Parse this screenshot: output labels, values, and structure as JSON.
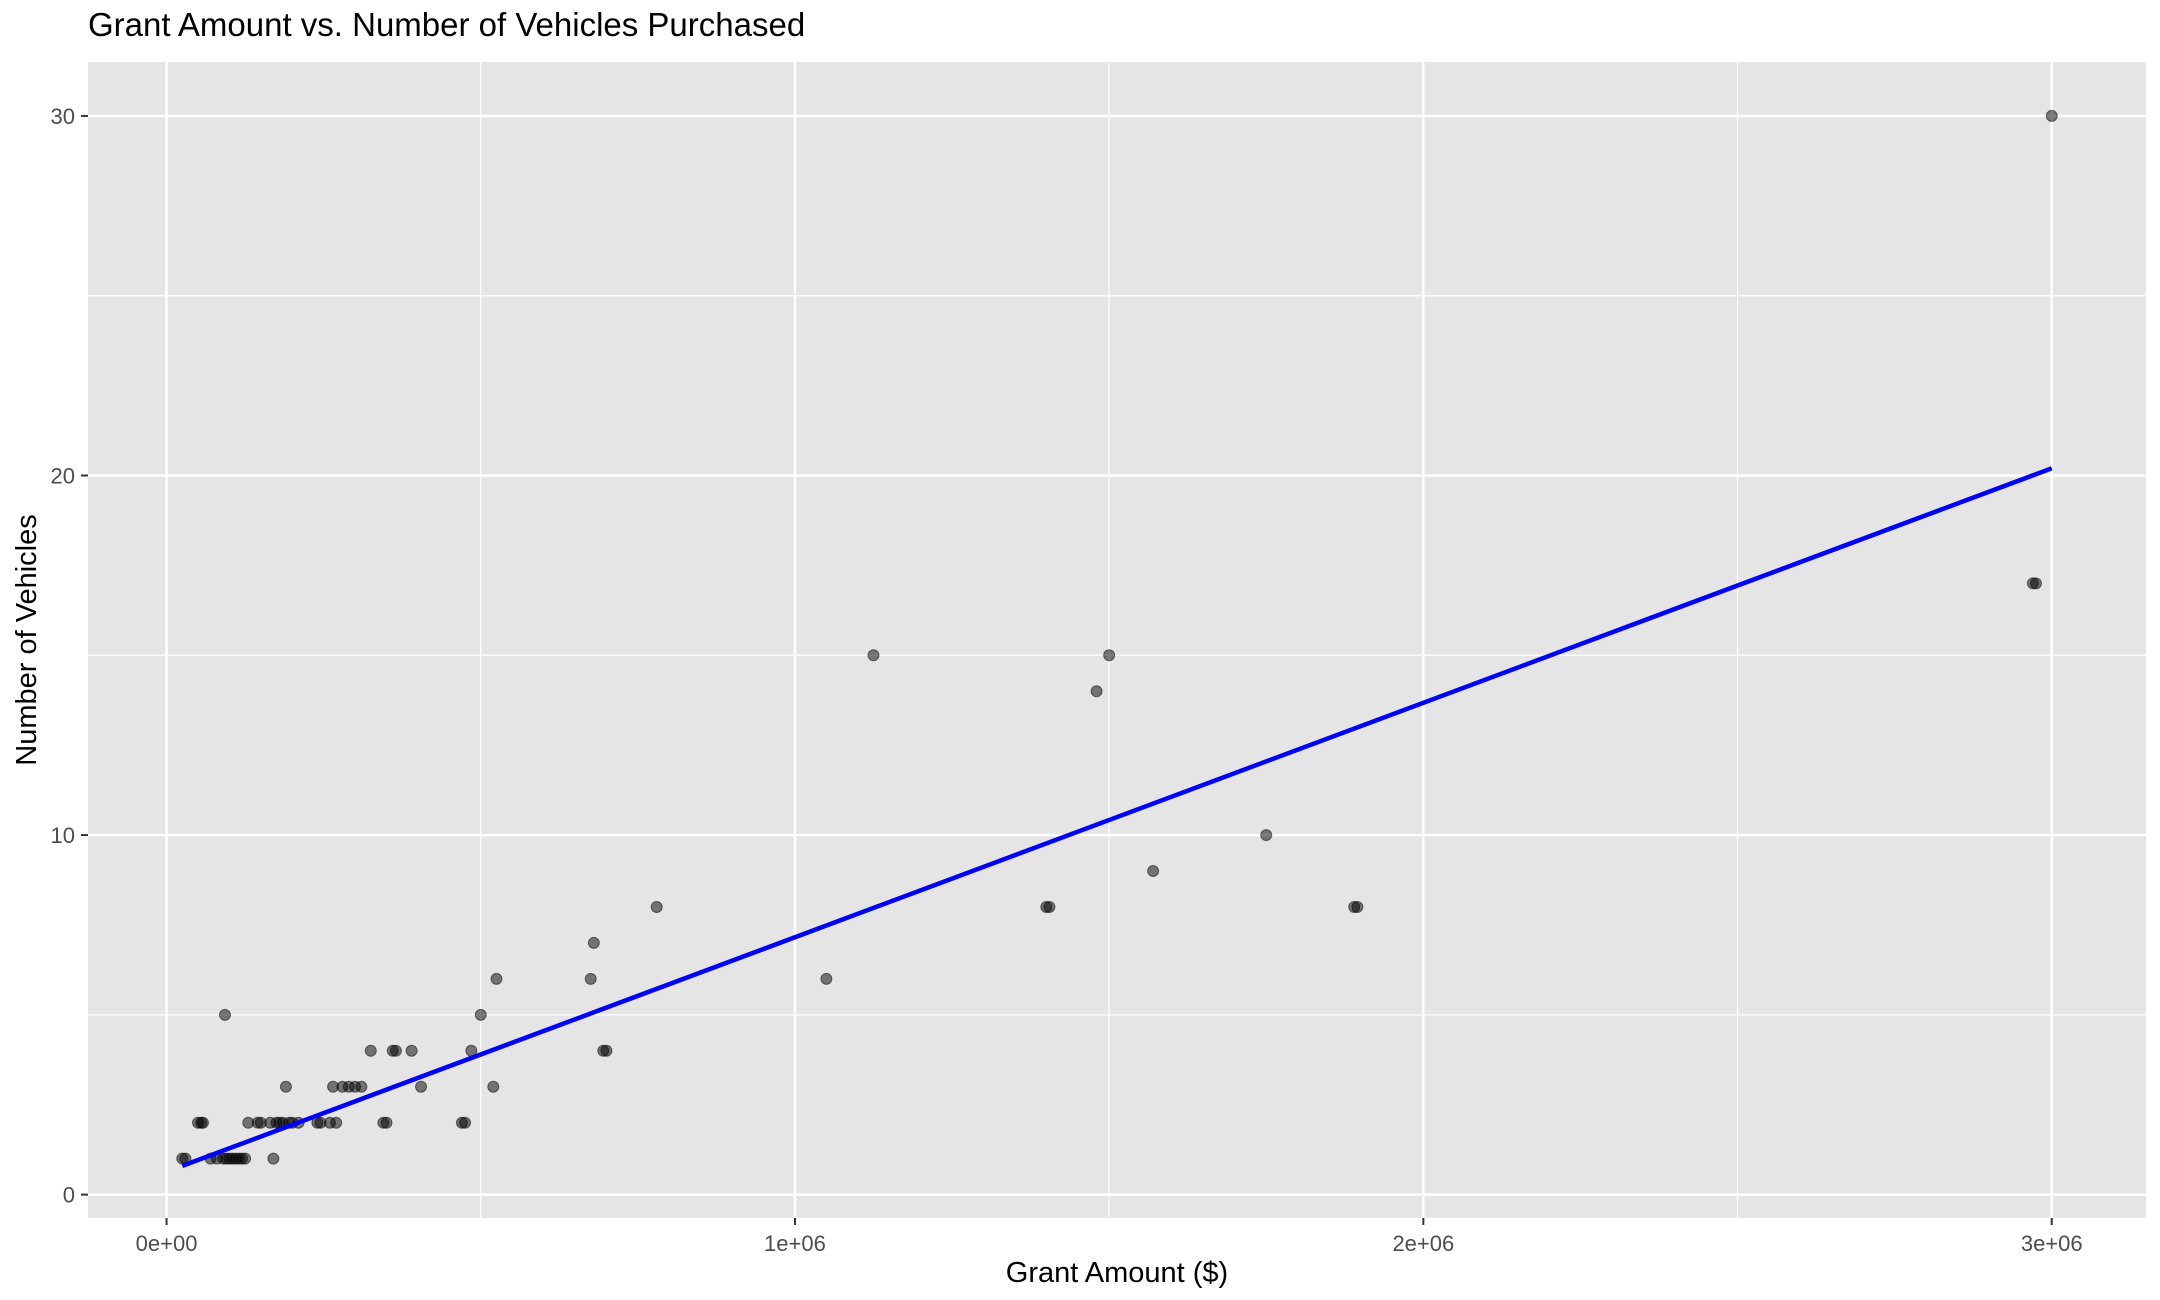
{
  "chart_data": {
    "type": "scatter",
    "title": "Grant Amount vs. Number of Vehicles Purchased",
    "xlabel": "Grant Amount ($)",
    "ylabel": "Number of Vehicles",
    "xlim": [
      -125000,
      3150000
    ],
    "ylim": [
      -0.65,
      31.5
    ],
    "x_ticks": [
      0,
      1000000,
      2000000,
      3000000
    ],
    "x_tick_labels": [
      "0e+00",
      "1e+06",
      "2e+06",
      "3e+06"
    ],
    "y_ticks": [
      0,
      10,
      20,
      30
    ],
    "y_tick_labels": [
      "0",
      "10",
      "20",
      "30"
    ],
    "grid": true,
    "legend": "none",
    "colors": {
      "panel_background": "#e5e5e5",
      "grid_line": "#ffffff",
      "point": "#000000",
      "trend_line": "#0000ff"
    },
    "series": [
      {
        "points": [
          [
            25000,
            1
          ],
          [
            30000,
            1
          ],
          [
            50000,
            2
          ],
          [
            55000,
            2
          ],
          [
            58000,
            2
          ],
          [
            70000,
            1
          ],
          [
            80000,
            1
          ],
          [
            90000,
            1
          ],
          [
            93000,
            5
          ],
          [
            95000,
            1
          ],
          [
            100000,
            1
          ],
          [
            105000,
            1
          ],
          [
            110000,
            1
          ],
          [
            115000,
            1
          ],
          [
            120000,
            1
          ],
          [
            125000,
            1
          ],
          [
            130000,
            2
          ],
          [
            145000,
            2
          ],
          [
            150000,
            2
          ],
          [
            165000,
            2
          ],
          [
            170000,
            1
          ],
          [
            175000,
            2
          ],
          [
            180000,
            2
          ],
          [
            185000,
            2
          ],
          [
            190000,
            3
          ],
          [
            195000,
            2
          ],
          [
            200000,
            2
          ],
          [
            210000,
            2
          ],
          [
            240000,
            2
          ],
          [
            245000,
            2
          ],
          [
            260000,
            2
          ],
          [
            265000,
            3
          ],
          [
            270000,
            2
          ],
          [
            280000,
            3
          ],
          [
            290000,
            3
          ],
          [
            300000,
            3
          ],
          [
            310000,
            3
          ],
          [
            325000,
            4
          ],
          [
            345000,
            2
          ],
          [
            350000,
            2
          ],
          [
            360000,
            4
          ],
          [
            365000,
            4
          ],
          [
            390000,
            4
          ],
          [
            405000,
            3
          ],
          [
            470000,
            2
          ],
          [
            475000,
            2
          ],
          [
            485000,
            4
          ],
          [
            500000,
            5
          ],
          [
            520000,
            3
          ],
          [
            525000,
            6
          ],
          [
            675000,
            6
          ],
          [
            680000,
            7
          ],
          [
            695000,
            4
          ],
          [
            700000,
            4
          ],
          [
            780000,
            8
          ],
          [
            1050000,
            6
          ],
          [
            1125000,
            15
          ],
          [
            1400000,
            8
          ],
          [
            1405000,
            8
          ],
          [
            1480000,
            14
          ],
          [
            1500000,
            15
          ],
          [
            1570000,
            9
          ],
          [
            1750000,
            10
          ],
          [
            1890000,
            8
          ],
          [
            1895000,
            8
          ],
          [
            2970000,
            17
          ],
          [
            2975000,
            17
          ],
          [
            3000000,
            30
          ]
        ]
      }
    ],
    "trend_line": {
      "x": [
        25000,
        3000000
      ],
      "y": [
        0.8,
        20.2
      ]
    }
  }
}
